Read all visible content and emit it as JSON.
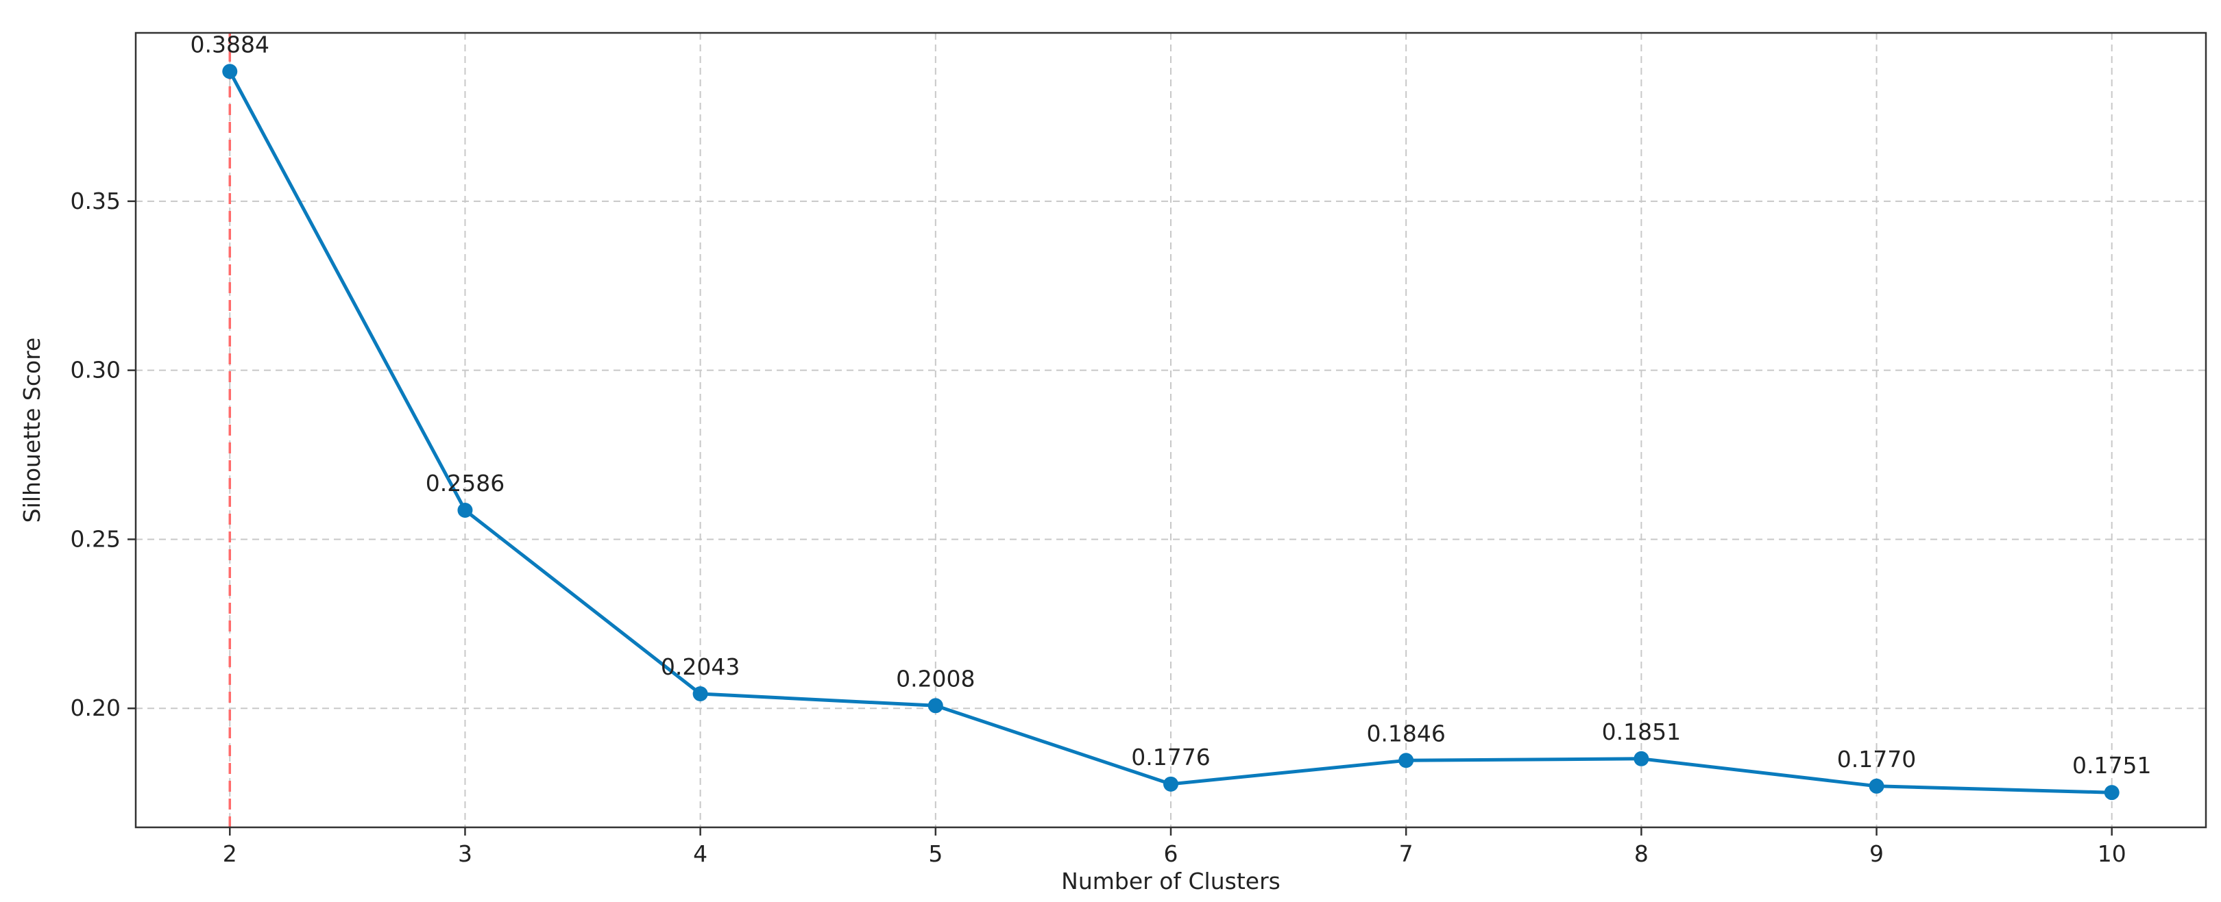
{
  "chart_data": {
    "type": "line",
    "title": "",
    "xlabel": "Number of Clusters",
    "ylabel": "Silhouette Score",
    "x": [
      2,
      3,
      4,
      5,
      6,
      7,
      8,
      9,
      10
    ],
    "series": [
      {
        "values": [
          0.3884,
          0.2586,
          0.2043,
          0.2008,
          0.1776,
          0.1846,
          0.1851,
          0.177,
          0.1751
        ],
        "labels": [
          "0.3884",
          "0.2586",
          "0.2043",
          "0.2008",
          "0.1776",
          "0.1846",
          "0.1851",
          "0.1770",
          "0.1751"
        ],
        "color": "#0a7bbd",
        "marker": "circle"
      }
    ],
    "xticks": [
      "2",
      "3",
      "4",
      "5",
      "6",
      "7",
      "8",
      "9",
      "10"
    ],
    "yticks": [
      0.2,
      0.25,
      0.3,
      0.35
    ],
    "ytick_labels": [
      "0.20",
      "0.25",
      "0.30",
      "0.35"
    ],
    "xlim": [
      1.6,
      10.4
    ],
    "ylim": [
      0.1648,
      0.3998
    ],
    "grid": true,
    "grid_style": "dashed",
    "reference_line": {
      "x": 2,
      "color": "#ff6b6b",
      "style": "dashed"
    }
  }
}
